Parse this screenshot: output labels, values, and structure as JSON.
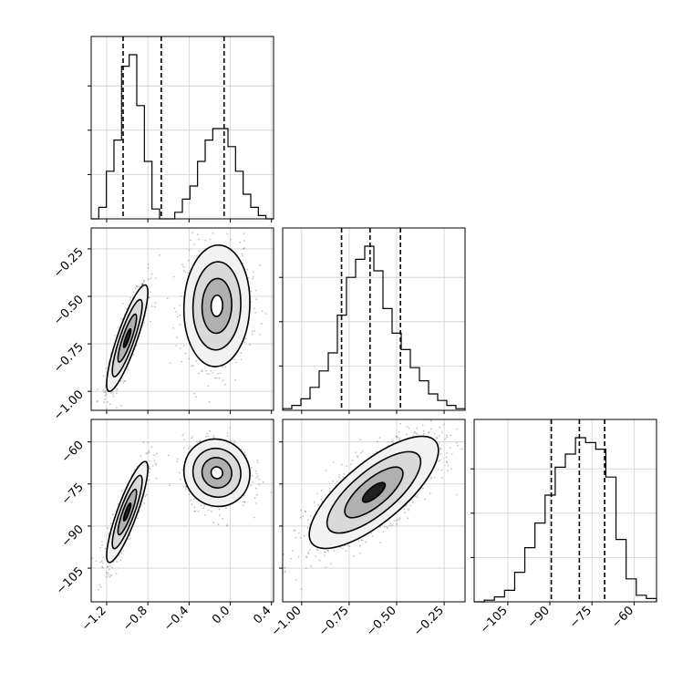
{
  "chart_data": {
    "type": "corner",
    "parameters": [
      {
        "range": [
          -1.35,
          0.42
        ],
        "ticks": [
          -1.2,
          -0.8,
          -0.4,
          0.0,
          0.4
        ],
        "tick_labels": [
          "−1.2",
          "−0.8",
          "−0.4",
          "0.0",
          "0.4"
        ],
        "quantiles": [
          -1.04,
          -0.67,
          -0.06
        ],
        "hist_counts": [
          0,
          0.07,
          0.29,
          0.48,
          0.93,
          1.0,
          0.69,
          0.35,
          0.06,
          0.0,
          0,
          0.04,
          0.12,
          0.2,
          0.35,
          0.48,
          0.55,
          0.55,
          0.44,
          0.29,
          0.15,
          0.07,
          0.02,
          0
        ]
      },
      {
        "range": [
          -1.1,
          -0.14
        ],
        "ticks": [
          -1.0,
          -0.75,
          -0.5,
          -0.25
        ],
        "tick_labels": [
          "−1.00",
          "−0.75",
          "−0.50",
          "−0.25"
        ],
        "quantiles": [
          -0.79,
          -0.64,
          -0.48
        ],
        "hist_counts": [
          0.01,
          0.03,
          0.07,
          0.14,
          0.24,
          0.35,
          0.58,
          0.81,
          0.92,
          1.0,
          0.85,
          0.62,
          0.47,
          0.37,
          0.26,
          0.18,
          0.1,
          0.06,
          0.03,
          0.01
        ]
      },
      {
        "range": [
          -117,
          -52
        ],
        "ticks": [
          -105,
          -90,
          -75,
          -60
        ],
        "tick_labels": [
          "−105",
          "−90",
          "−75",
          "−60"
        ],
        "quantiles": [
          -89.5,
          -79.5,
          -70.5
        ],
        "hist_counts": [
          0.0,
          0.01,
          0.03,
          0.07,
          0.18,
          0.33,
          0.48,
          0.65,
          0.82,
          0.9,
          1.0,
          0.97,
          0.93,
          0.76,
          0.38,
          0.14,
          0.04,
          0.02
        ]
      }
    ],
    "pair_clusters": {
      "1-0": [
        {
          "mx": -1.0,
          "my": -0.72,
          "sx": 0.1,
          "sy": 0.14,
          "rho": 0.86,
          "weight": 0.5
        },
        {
          "mx": -0.13,
          "my": -0.55,
          "sx": 0.16,
          "sy": 0.16,
          "rho": 0.05,
          "weight": 0.5
        }
      ],
      "2-0": [
        {
          "mx": -1.0,
          "my": -85,
          "sx": 0.1,
          "sy": 9,
          "rho": 0.86,
          "weight": 0.5
        },
        {
          "mx": -0.13,
          "my": -71,
          "sx": 0.16,
          "sy": 6,
          "rho": -0.05,
          "weight": 0.5
        }
      ],
      "2-1": [
        {
          "mx": -0.62,
          "my": -78,
          "sx": 0.17,
          "sy": 10,
          "rho": 0.75,
          "weight": 1.0
        }
      ]
    }
  }
}
